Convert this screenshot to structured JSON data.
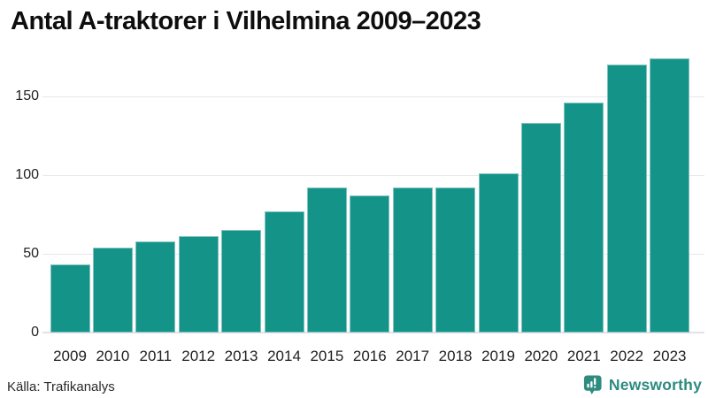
{
  "title": "Antal A-traktorer i Vilhelmina 2009–2023",
  "footer": {
    "source": "Källa: Trafikanalys",
    "brand": "Newsworthy",
    "brand_icon": "newsworthy-speech-bubble-chart-icon"
  },
  "colors": {
    "bar": "#149389",
    "brand": "#2e8b80",
    "gridline": "#e8e8ec",
    "text": "#0e0e0e",
    "axis_text": "#212121",
    "background": "#ffffff"
  },
  "chart_data": {
    "type": "bar",
    "title": "Antal A-traktorer i Vilhelmina 2009–2023",
    "categories": [
      "2009",
      "2010",
      "2011",
      "2012",
      "2013",
      "2014",
      "2015",
      "2016",
      "2017",
      "2018",
      "2019",
      "2020",
      "2021",
      "2022",
      "2023"
    ],
    "values": [
      43,
      54,
      58,
      61,
      65,
      77,
      92,
      87,
      92,
      92,
      101,
      133,
      146,
      170,
      174
    ],
    "xlabel": "",
    "ylabel": "",
    "yticks": [
      0,
      50,
      100,
      150
    ],
    "ylim": [
      0,
      180
    ],
    "grid": true,
    "legend_position": "none",
    "bar_color": "#149389",
    "source": "Källa: Trafikanalys"
  }
}
